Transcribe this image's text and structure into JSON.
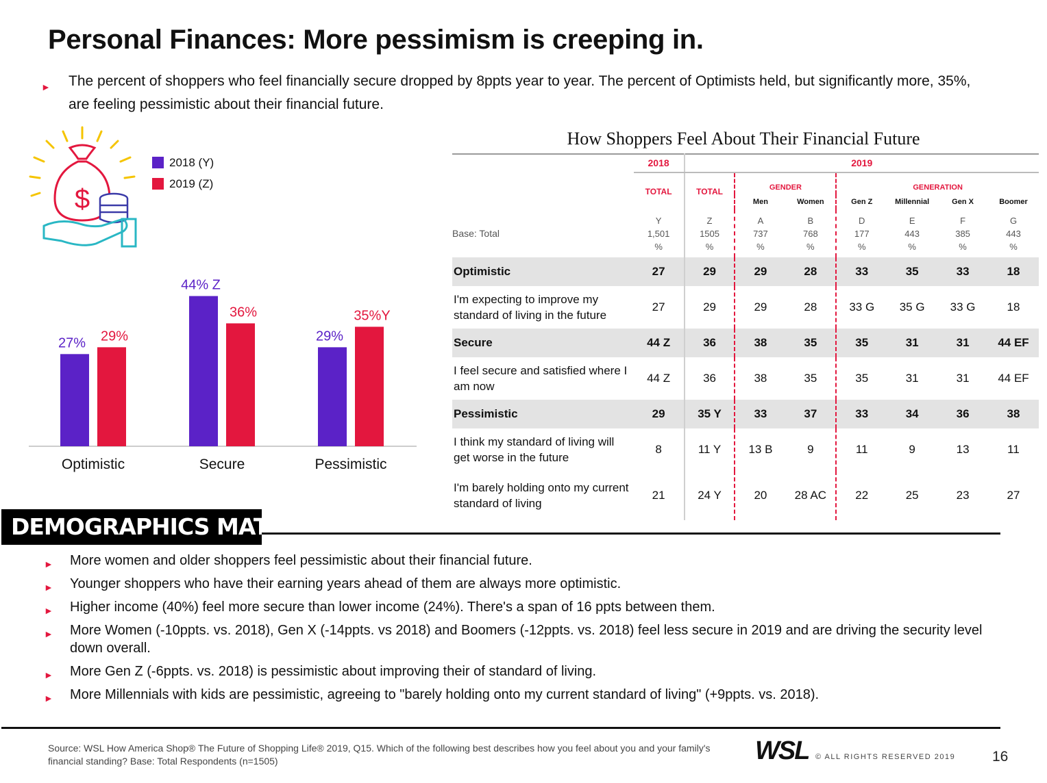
{
  "title": "Personal Finances: More pessimism is creeping in.",
  "intro": "The percent of shoppers who feel financially secure dropped by 8ppts year to year. The percent of Optimists held, but significantly more, 35%, are feeling pessimistic about their financial future.",
  "colors": {
    "y2018": "#5b22c7",
    "y2019": "#e3173e",
    "accent": "#e3173e"
  },
  "legend": [
    {
      "label": "2018 (Y)",
      "color": "#5b22c7"
    },
    {
      "label": "2019 (Z)",
      "color": "#e3173e"
    }
  ],
  "chart_data": {
    "type": "bar",
    "categories": [
      "Optimistic",
      "Secure",
      "Pessimistic"
    ],
    "series": [
      {
        "name": "2018 (Y)",
        "values": [
          27,
          44,
          29
        ],
        "labels": [
          "27%",
          "44% Z",
          "29%"
        ]
      },
      {
        "name": "2019 (Z)",
        "values": [
          29,
          36,
          35
        ],
        "labels": [
          "29%",
          "36%",
          "35%Y"
        ]
      }
    ],
    "ylim": [
      0,
      50
    ],
    "grid": false,
    "legend_position": "top"
  },
  "table": {
    "title": "How Shoppers Feel About Their Financial Future",
    "year_2018": "2018",
    "year_2019": "2019",
    "group_gender": "GENDER",
    "group_generation": "GENERATION",
    "total_label": "TOTAL",
    "col_heads": [
      "Men",
      "Women",
      "Gen Z",
      "Millennial",
      "Gen X",
      "Boomer"
    ],
    "base_label": "Base: Total",
    "base": [
      {
        "letter": "Y",
        "n": "1,501",
        "pct": "%"
      },
      {
        "letter": "Z",
        "n": "1505",
        "pct": "%"
      },
      {
        "letter": "A",
        "n": "737",
        "pct": "%"
      },
      {
        "letter": "B",
        "n": "768",
        "pct": "%"
      },
      {
        "letter": "D",
        "n": "177",
        "pct": "%"
      },
      {
        "letter": "E",
        "n": "443",
        "pct": "%"
      },
      {
        "letter": "F",
        "n": "385",
        "pct": "%"
      },
      {
        "letter": "G",
        "n": "443",
        "pct": "%"
      }
    ],
    "rows": [
      {
        "kind": "head",
        "label": "Optimistic",
        "values": [
          "27",
          "29",
          "29",
          "28",
          "33",
          "35",
          "33",
          "18"
        ]
      },
      {
        "kind": "item",
        "label": "I'm expecting to improve my standard of living in the future",
        "values": [
          "27",
          "29",
          "29",
          "28",
          "33 G",
          "35 G",
          "33 G",
          "18"
        ]
      },
      {
        "kind": "head",
        "label": "Secure",
        "values": [
          "44 Z",
          "36",
          "38",
          "35",
          "35",
          "31",
          "31",
          "44 EF"
        ]
      },
      {
        "kind": "item",
        "label": "I feel secure and satisfied where I am now",
        "values": [
          "44 Z",
          "36",
          "38",
          "35",
          "35",
          "31",
          "31",
          "44 EF"
        ]
      },
      {
        "kind": "head",
        "label": "Pessimistic",
        "values": [
          "29",
          "35 Y",
          "33",
          "37",
          "33",
          "34",
          "36",
          "38"
        ]
      },
      {
        "kind": "item",
        "label": "I think my standard of living will get worse in the future",
        "values": [
          "8",
          "11 Y",
          "13 B",
          "9",
          "11",
          "9",
          "13",
          "11"
        ]
      },
      {
        "kind": "item",
        "label": "I'm barely holding onto my current standard of living",
        "values": [
          "21",
          "24 Y",
          "20",
          "28 AC",
          "22",
          "25",
          "23",
          "27"
        ]
      }
    ]
  },
  "demographics": {
    "heading": "DEMOGRAPHICS MATTER",
    "bullets": [
      "More women and older shoppers  feel pessimistic about their financial future.",
      "Younger shoppers who have their earning years ahead of them are always more optimistic.",
      "Higher income (40%) feel more secure than lower income (24%). There's a span of 16 ppts between them.",
      "More Women (-10ppts. vs. 2018), Gen X (-14ppts. vs 2018)  and Boomers (-12ppts. vs. 2018) feel less secure in 2019 and are driving the security level down overall.",
      "More Gen Z (-6ppts. vs. 2018) is pessimistic about improving their of standard of living.",
      "More Millennials with kids are pessimistic, agreeing to \"barely holding onto my current standard of living\" (+9ppts. vs. 2018)."
    ]
  },
  "footer": {
    "source": "Source: WSL How America Shop® The Future of Shopping Life® 2019, Q15. Which of the following best describes how you feel about you and your family's financial standing?  Base: Total Respondents (n=1505)",
    "logo": "WSL",
    "rights": "© ALL RIGHTS RESERVED 2019",
    "page": "16"
  },
  "icons": {
    "money": "money-bag-hand-icon",
    "bullet": "arrow-bullet-icon"
  }
}
